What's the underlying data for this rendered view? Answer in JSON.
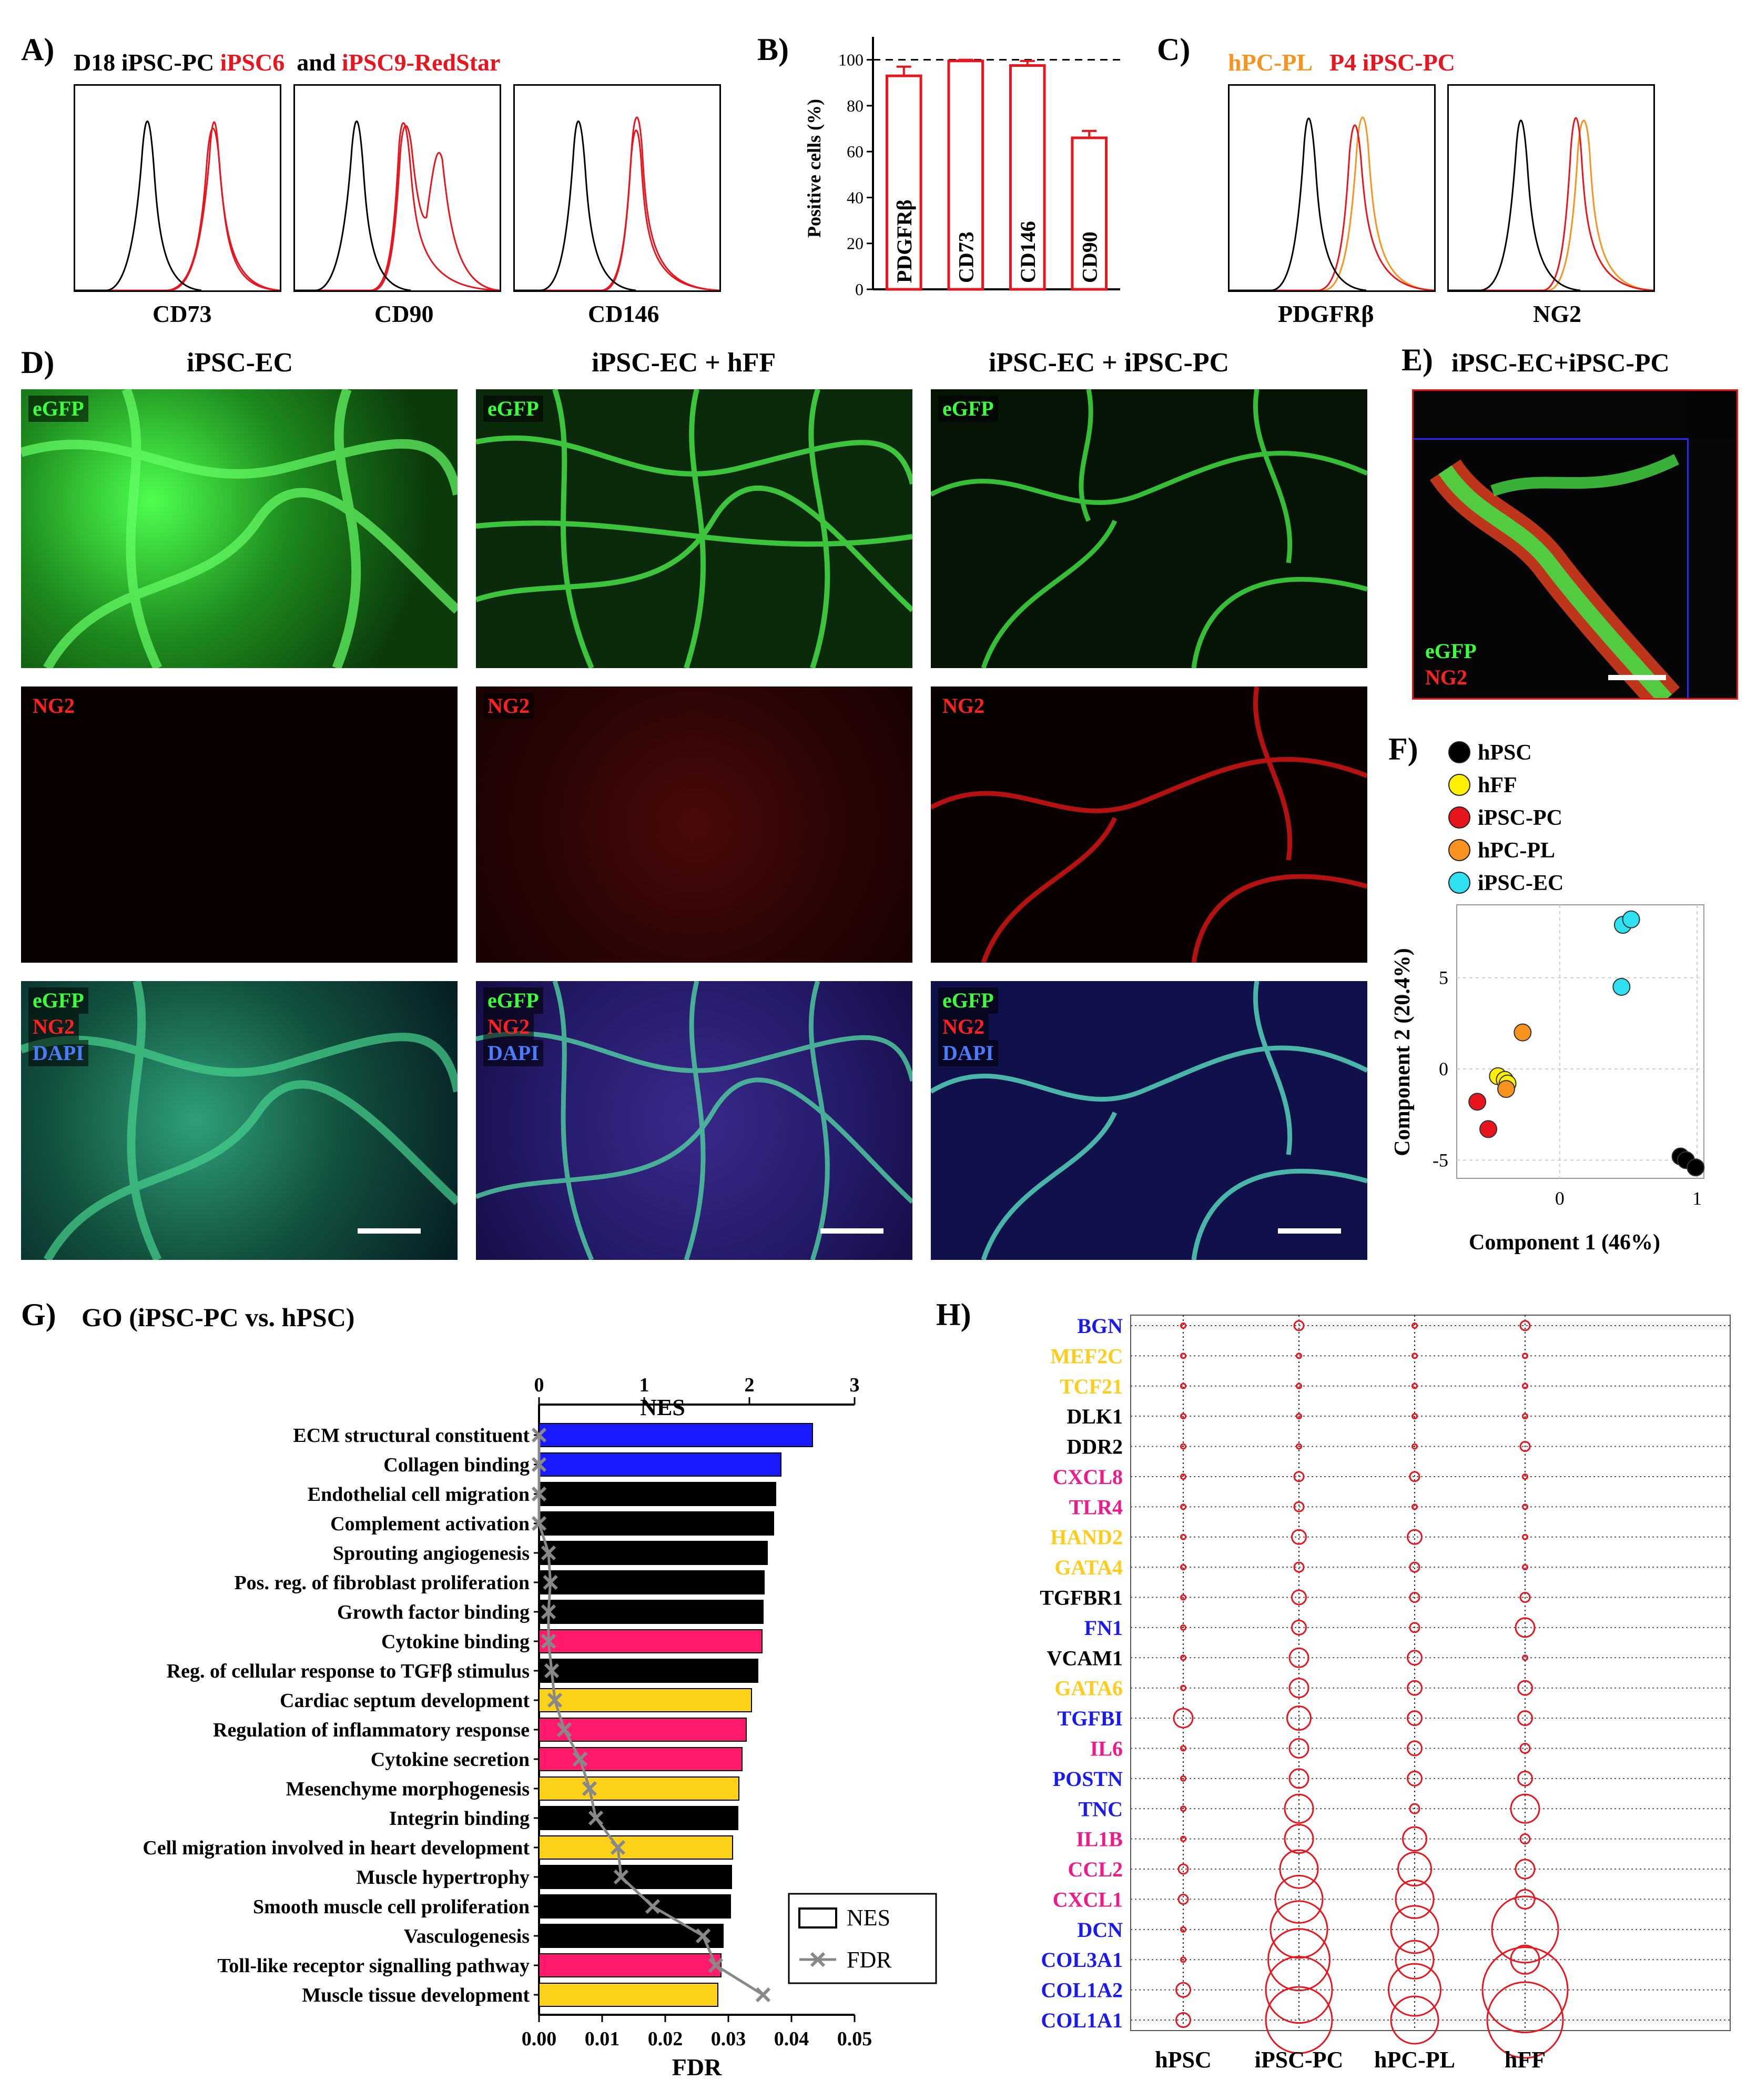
{
  "panelA": {
    "label": "A)",
    "title_prefix": "D18 iPSC-PC",
    "title_red1": "iPSC6",
    "title_and": "and",
    "title_red2": "iPSC9-RedStar",
    "markers": [
      "CD73",
      "CD90",
      "CD146"
    ]
  },
  "panelB": {
    "label": "B)",
    "chart_data": {
      "type": "bar",
      "ylabel": "Positive cells (%)",
      "categories": [
        "PDGFRβ",
        "CD73",
        "CD146",
        "CD90"
      ],
      "values": [
        93,
        99.5,
        97.5,
        66
      ],
      "errors": [
        4,
        0.5,
        2,
        3
      ],
      "ylim": [
        0,
        110
      ],
      "yticks": [
        "0",
        "20",
        "40",
        "60",
        "80",
        "100"
      ],
      "reference_line": 100,
      "bar_edge_color": "#e8141e"
    }
  },
  "panelC": {
    "label": "C)",
    "title_orange": "hPC-PL",
    "title_red": "P4 iPSC-PC",
    "markers": [
      "PDGFRβ",
      "NG2"
    ]
  },
  "panelD": {
    "label": "D)",
    "columns": [
      "iPSC-EC",
      "iPSC-EC + hFF",
      "iPSC-EC + iPSC-PC"
    ],
    "row_labels": {
      "green": "eGFP",
      "red": "NG2",
      "merge": [
        "eGFP",
        "NG2",
        "DAPI"
      ]
    }
  },
  "panelE": {
    "label": "E)",
    "title": "iPSC-EC+iPSC-PC",
    "labels": [
      "eGFP",
      "NG2"
    ]
  },
  "panelF": {
    "label": "F)",
    "chart_data": {
      "type": "scatter",
      "xlabel": "Component 1 (46%)",
      "ylabel": "Component 2 (20.4%)",
      "xlim": [
        -0.75,
        1.05
      ],
      "ylim": [
        -6,
        9
      ],
      "xticks": [
        "0",
        "1"
      ],
      "yticks": [
        "-5",
        "0",
        "5"
      ],
      "series": [
        {
          "name": "hPSC",
          "color": "#000000",
          "points": [
            [
              0.88,
              -4.8
            ],
            [
              0.92,
              -5.0
            ],
            [
              0.99,
              -5.4
            ]
          ]
        },
        {
          "name": "hFF",
          "color": "#ffef00",
          "points": [
            [
              -0.45,
              -0.4
            ],
            [
              -0.4,
              -0.6
            ],
            [
              -0.38,
              -0.8
            ]
          ]
        },
        {
          "name": "iPSC-PC",
          "color": "#e8141e",
          "points": [
            [
              -0.6,
              -1.8
            ],
            [
              -0.52,
              -3.3
            ]
          ]
        },
        {
          "name": "hPC-PL",
          "color": "#f7931e",
          "points": [
            [
              -0.27,
              2.0
            ],
            [
              -0.39,
              -1.1
            ]
          ]
        },
        {
          "name": "iPSC-EC",
          "color": "#2fe0f0",
          "points": [
            [
              0.46,
              7.9
            ],
            [
              0.52,
              8.2
            ],
            [
              0.45,
              4.5
            ]
          ]
        }
      ]
    }
  },
  "panelG": {
    "label": "G)",
    "title": "GO (iPSC-PC vs. hPSC)",
    "chart_data": {
      "type": "bar",
      "top_axis_label": "NES",
      "bottom_axis_label": "FDR",
      "nes_lim": [
        0,
        3
      ],
      "nes_ticks": [
        "0",
        "1",
        "2",
        "3"
      ],
      "fdr_lim": [
        0,
        0.05
      ],
      "fdr_ticks": [
        "0.00",
        "0.01",
        "0.02",
        "0.03",
        "0.04",
        "0.05"
      ],
      "legend": [
        "NES",
        "FDR"
      ],
      "terms": [
        {
          "name": "ECM structural constituent",
          "nes": 2.6,
          "fdr": 0.0,
          "color": "#1a1aff"
        },
        {
          "name": "Collagen binding",
          "nes": 2.3,
          "fdr": 0.0,
          "color": "#1a1aff"
        },
        {
          "name": "Endothelial cell migration",
          "nes": 2.25,
          "fdr": 0.0,
          "color": "#000000"
        },
        {
          "name": "Complement activation",
          "nes": 2.23,
          "fdr": 0.0,
          "color": "#000000"
        },
        {
          "name": "Sprouting angiogenesis",
          "nes": 2.17,
          "fdr": 0.0015,
          "color": "#000000"
        },
        {
          "name": "Pos. reg. of fibroblast proliferation",
          "nes": 2.14,
          "fdr": 0.0018,
          "color": "#000000"
        },
        {
          "name": "Growth factor binding",
          "nes": 2.13,
          "fdr": 0.0015,
          "color": "#000000"
        },
        {
          "name": "Cytokine binding",
          "nes": 2.12,
          "fdr": 0.0015,
          "color": "#ff1a6e"
        },
        {
          "name": "Reg. of cellular response to TGFβ stimulus",
          "nes": 2.08,
          "fdr": 0.002,
          "color": "#000000"
        },
        {
          "name": "Cardiac septum development",
          "nes": 2.02,
          "fdr": 0.0025,
          "color": "#ffd21a"
        },
        {
          "name": "Regulation of inflammatory response",
          "nes": 1.97,
          "fdr": 0.004,
          "color": "#ff1a6e"
        },
        {
          "name": "Cytokine secretion",
          "nes": 1.93,
          "fdr": 0.0065,
          "color": "#ff1a6e"
        },
        {
          "name": "Mesenchyme morphogenesis",
          "nes": 1.9,
          "fdr": 0.008,
          "color": "#ffd21a"
        },
        {
          "name": "Integrin binding",
          "nes": 1.89,
          "fdr": 0.009,
          "color": "#000000"
        },
        {
          "name": "Cell migration involved in heart development",
          "nes": 1.84,
          "fdr": 0.0125,
          "color": "#ffd21a"
        },
        {
          "name": "Muscle hypertrophy",
          "nes": 1.83,
          "fdr": 0.013,
          "color": "#000000"
        },
        {
          "name": "Smooth muscle cell proliferation",
          "nes": 1.82,
          "fdr": 0.018,
          "color": "#000000"
        },
        {
          "name": "Vasculogenesis",
          "nes": 1.75,
          "fdr": 0.026,
          "color": "#000000"
        },
        {
          "name": "Toll-like receptor signalling pathway",
          "nes": 1.73,
          "fdr": 0.028,
          "color": "#ff1a6e"
        },
        {
          "name": "Muscle tissue development",
          "nes": 1.7,
          "fdr": 0.0355,
          "color": "#ffd21a"
        }
      ]
    }
  },
  "panelH": {
    "label": "H)",
    "chart_data": {
      "type": "bubble",
      "columns": [
        "hPSC",
        "iPSC-PC",
        "hPC-PL",
        "hFF"
      ],
      "genes": [
        {
          "name": "BGN",
          "color": "#1a1aee",
          "sizes": [
            0.5,
            1,
            0.5,
            1
          ]
        },
        {
          "name": "MEF2C",
          "color": "#ffcc1a",
          "sizes": [
            0.5,
            0.5,
            0.5,
            0.5
          ]
        },
        {
          "name": "TCF21",
          "color": "#ffcc1a",
          "sizes": [
            0.5,
            0.5,
            0.5,
            0.5
          ]
        },
        {
          "name": "DLK1",
          "color": "#000000",
          "sizes": [
            0.5,
            0.5,
            0.5,
            0.5
          ]
        },
        {
          "name": "DDR2",
          "color": "#000000",
          "sizes": [
            0.5,
            0.5,
            0.5,
            1
          ]
        },
        {
          "name": "CXCL8",
          "color": "#ee1a8a",
          "sizes": [
            0.5,
            1,
            1,
            0.5
          ]
        },
        {
          "name": "TLR4",
          "color": "#ee1a8a",
          "sizes": [
            0.5,
            1,
            0.5,
            0.5
          ]
        },
        {
          "name": "HAND2",
          "color": "#ffcc1a",
          "sizes": [
            0.5,
            1.5,
            1.5,
            0.5
          ]
        },
        {
          "name": "GATA4",
          "color": "#ffcc1a",
          "sizes": [
            0.5,
            1,
            1,
            0.5
          ]
        },
        {
          "name": "TGFBR1",
          "color": "#000000",
          "sizes": [
            0.5,
            1.5,
            1,
            1
          ]
        },
        {
          "name": "FN1",
          "color": "#1a1aee",
          "sizes": [
            0.5,
            1.5,
            1,
            2
          ]
        },
        {
          "name": "VCAM1",
          "color": "#000000",
          "sizes": [
            0.5,
            2,
            1.5,
            0.5
          ]
        },
        {
          "name": "GATA6",
          "color": "#ffcc1a",
          "sizes": [
            0.5,
            2,
            1.5,
            1.5
          ]
        },
        {
          "name": "TGFBI",
          "color": "#1a1aee",
          "sizes": [
            2,
            2.5,
            1.5,
            1.5
          ]
        },
        {
          "name": "IL6",
          "color": "#ee1a8a",
          "sizes": [
            0.5,
            2,
            1.5,
            1
          ]
        },
        {
          "name": "POSTN",
          "color": "#1a1aee",
          "sizes": [
            0.5,
            2,
            1.5,
            1.5
          ]
        },
        {
          "name": "TNC",
          "color": "#1a1aee",
          "sizes": [
            0.5,
            3,
            1,
            3
          ]
        },
        {
          "name": "IL1B",
          "color": "#ee1a8a",
          "sizes": [
            0.5,
            3,
            2.5,
            1
          ]
        },
        {
          "name": "CCL2",
          "color": "#ee1a8a",
          "sizes": [
            1,
            4,
            3.5,
            2
          ]
        },
        {
          "name": "CXCL1",
          "color": "#ee1a8a",
          "sizes": [
            1,
            5,
            4,
            2
          ]
        },
        {
          "name": "DCN",
          "color": "#1a1aee",
          "sizes": [
            0.5,
            6,
            5,
            7
          ]
        },
        {
          "name": "COL3A1",
          "color": "#1a1aee",
          "sizes": [
            0.5,
            6.5,
            4,
            3
          ]
        },
        {
          "name": "COL1A2",
          "color": "#1a1aee",
          "sizes": [
            1.5,
            7,
            5.5,
            9
          ]
        },
        {
          "name": "COL1A1",
          "color": "#1a1aee",
          "sizes": [
            1.5,
            7,
            5,
            8
          ]
        }
      ]
    }
  }
}
